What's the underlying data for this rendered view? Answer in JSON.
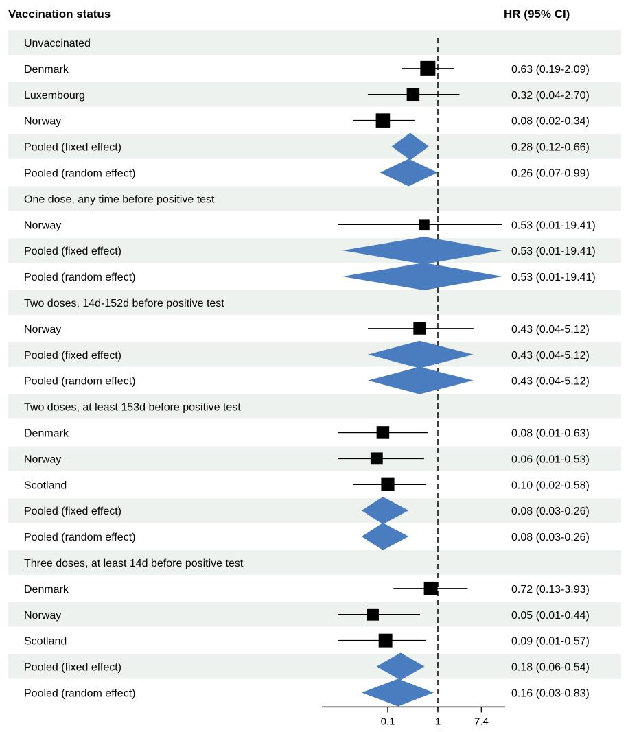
{
  "chart_data": {
    "type": "forest",
    "header": {
      "label_col": "Vaccination status",
      "value_col": "HR (95% CI)"
    },
    "scale": "log",
    "reference_line": 1,
    "xlim": [
      0.0025,
      45
    ],
    "xticks": [
      {
        "value": 0.1,
        "label": "0.1"
      },
      {
        "value": 1,
        "label": "1"
      },
      {
        "value": 7.4,
        "label": "7.4"
      }
    ],
    "colors": {
      "band": "#eef2ef",
      "diamond": "#4a7cc0",
      "marker": "#000000",
      "line": "#000000"
    },
    "rows": [
      {
        "kind": "group",
        "label": "Unvaccinated"
      },
      {
        "kind": "study",
        "label": "Denmark",
        "hr": 0.63,
        "lo": 0.19,
        "hi": 2.09,
        "text": "0.63 (0.19-2.09)",
        "size": 1.0
      },
      {
        "kind": "study",
        "label": "Luxembourg",
        "hr": 0.32,
        "lo": 0.04,
        "hi": 2.7,
        "text": "0.32 (0.04-2.70)",
        "size": 0.75
      },
      {
        "kind": "study",
        "label": "Norway",
        "hr": 0.08,
        "lo": 0.02,
        "hi": 0.34,
        "text": "0.08 (0.02-0.34)",
        "size": 0.9
      },
      {
        "kind": "pooled",
        "label": "Pooled (fixed effect)",
        "hr": 0.28,
        "lo": 0.12,
        "hi": 0.66,
        "text": "0.28 (0.12-0.66)"
      },
      {
        "kind": "pooled",
        "label": "Pooled (random effect)",
        "hr": 0.26,
        "lo": 0.07,
        "hi": 0.99,
        "text": "0.26 (0.07-0.99)"
      },
      {
        "kind": "group",
        "label": "One dose, any time before positive test"
      },
      {
        "kind": "study",
        "label": "Norway",
        "hr": 0.53,
        "lo": 0.01,
        "hi": 19.41,
        "text": "0.53 (0.01-19.41)",
        "size": 0.55
      },
      {
        "kind": "pooled",
        "label": "Pooled (fixed effect)",
        "hr": 0.53,
        "lo": 0.01,
        "hi": 19.41,
        "text": "0.53 (0.01-19.41)"
      },
      {
        "kind": "pooled",
        "label": "Pooled (random effect)",
        "hr": 0.53,
        "lo": 0.01,
        "hi": 19.41,
        "text": "0.53 (0.01-19.41)"
      },
      {
        "kind": "group",
        "label": "Two doses, 14d-152d before positive test"
      },
      {
        "kind": "study",
        "label": "Norway",
        "hr": 0.43,
        "lo": 0.04,
        "hi": 5.12,
        "text": "0.43 (0.04-5.12)",
        "size": 0.7
      },
      {
        "kind": "pooled",
        "label": "Pooled (fixed effect)",
        "hr": 0.43,
        "lo": 0.04,
        "hi": 5.12,
        "text": "0.43 (0.04-5.12)"
      },
      {
        "kind": "pooled",
        "label": "Pooled (random effect)",
        "hr": 0.43,
        "lo": 0.04,
        "hi": 5.12,
        "text": "0.43 (0.04-5.12)"
      },
      {
        "kind": "group",
        "label": "Two doses, at least 153d before positive test"
      },
      {
        "kind": "study",
        "label": "Denmark",
        "hr": 0.08,
        "lo": 0.01,
        "hi": 0.63,
        "text": "0.08 (0.01-0.63)",
        "size": 0.75
      },
      {
        "kind": "study",
        "label": "Norway",
        "hr": 0.06,
        "lo": 0.01,
        "hi": 0.53,
        "text": "0.06 (0.01-0.53)",
        "size": 0.7
      },
      {
        "kind": "study",
        "label": "Scotland",
        "hr": 0.1,
        "lo": 0.02,
        "hi": 0.58,
        "text": "0.10 (0.02-0.58)",
        "size": 0.8
      },
      {
        "kind": "pooled",
        "label": "Pooled (fixed effect)",
        "hr": 0.08,
        "lo": 0.03,
        "hi": 0.26,
        "text": "0.08 (0.03-0.26)"
      },
      {
        "kind": "pooled",
        "label": "Pooled (random effect)",
        "hr": 0.08,
        "lo": 0.03,
        "hi": 0.26,
        "text": "0.08 (0.03-0.26)"
      },
      {
        "kind": "group",
        "label": "Three doses, at least 14d before positive test"
      },
      {
        "kind": "study",
        "label": "Denmark",
        "hr": 0.72,
        "lo": 0.13,
        "hi": 3.93,
        "text": "0.72 (0.13-3.93)",
        "size": 0.85
      },
      {
        "kind": "study",
        "label": "Norway",
        "hr": 0.05,
        "lo": 0.01,
        "hi": 0.44,
        "text": "0.05 (0.01-0.44)",
        "size": 0.7
      },
      {
        "kind": "study",
        "label": "Scotland",
        "hr": 0.09,
        "lo": 0.01,
        "hi": 0.57,
        "text": "0.09 (0.01-0.57)",
        "size": 0.85
      },
      {
        "kind": "pooled",
        "label": "Pooled (fixed effect)",
        "hr": 0.18,
        "lo": 0.06,
        "hi": 0.54,
        "text": "0.18 (0.06-0.54)"
      },
      {
        "kind": "pooled",
        "label": "Pooled (random effect)",
        "hr": 0.16,
        "lo": 0.03,
        "hi": 0.83,
        "text": "0.16 (0.03-0.83)"
      }
    ]
  }
}
